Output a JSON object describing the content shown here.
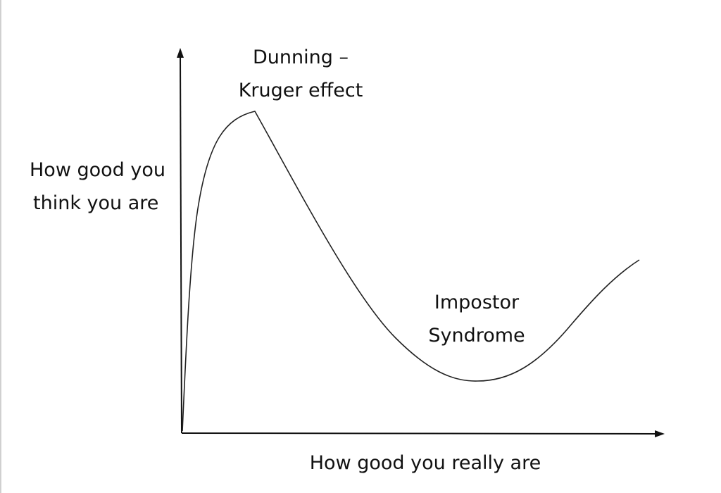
{
  "diagram": {
    "ylabel": [
      "How good you",
      "think you are"
    ],
    "xlabel": "How good you really are",
    "annotations": {
      "peak": [
        "Dunning –",
        "Kruger effect"
      ],
      "valley": [
        "Impostor",
        "Syndrome"
      ]
    },
    "curve_color": "#222222",
    "axis_color": "#111111"
  }
}
